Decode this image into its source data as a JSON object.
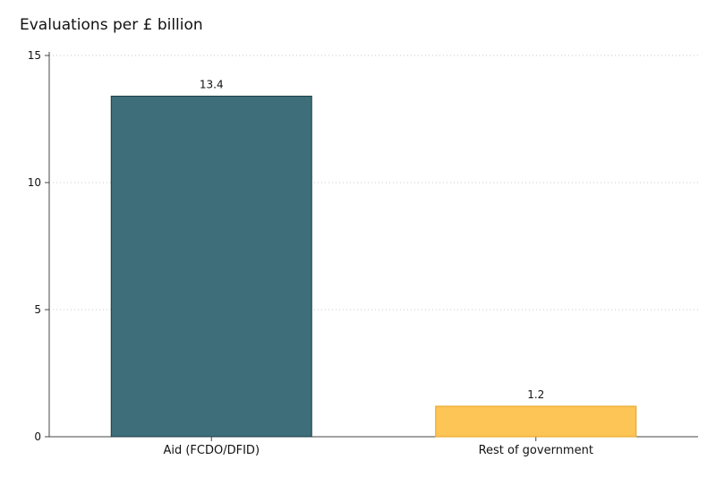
{
  "chart_data": {
    "type": "bar",
    "title": "Evaluations per £ billion",
    "xlabel": "",
    "ylabel": "",
    "categories": [
      "Aid (FCDO/DFID)",
      "Rest of government"
    ],
    "values": [
      13.4,
      1.2
    ],
    "value_labels": [
      "13.4",
      "1.2"
    ],
    "colors": [
      "#3d6e7a",
      "#fdc456"
    ],
    "edge_colors": [
      "#1d3d45",
      "#e8a21f"
    ],
    "ylim": [
      0,
      15
    ],
    "yticks": [
      0,
      5,
      10,
      15
    ],
    "ytick_labels": [
      "0",
      "5",
      "10",
      "15"
    ],
    "grid": true,
    "legend": "none"
  }
}
